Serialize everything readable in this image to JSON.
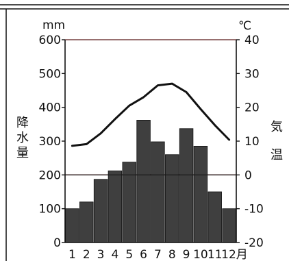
{
  "chart_data": {
    "type": "bar+line",
    "left_axis": {
      "unit": "mm",
      "label_chars": [
        "降",
        "水",
        "量"
      ],
      "ylim": [
        0,
        600
      ],
      "ticks": [
        0,
        100,
        200,
        300,
        400,
        500,
        600
      ]
    },
    "right_axis": {
      "unit": "℃",
      "label_chars": [
        "気",
        "温"
      ],
      "ylim": [
        -20,
        40
      ],
      "ticks": [
        -20,
        -10,
        0,
        10,
        20,
        30,
        40
      ]
    },
    "categories": [
      "1",
      "2",
      "3",
      "4",
      "5",
      "6",
      "7",
      "8",
      "9",
      "10",
      "11",
      "12月"
    ],
    "precipitation": {
      "type": "bar",
      "values": [
        100,
        120,
        187,
        212,
        238,
        362,
        298,
        260,
        337,
        285,
        150,
        100
      ]
    },
    "temperature": {
      "type": "line",
      "values": [
        8.6,
        9.1,
        12.3,
        16.5,
        20.5,
        23,
        26.5,
        27,
        24.5,
        19.5,
        14.7,
        10.4
      ]
    },
    "colors": {
      "bar_fill": "#3f3f3f",
      "line": "#111111",
      "horizontal_lines": "#5a1a1a"
    }
  }
}
